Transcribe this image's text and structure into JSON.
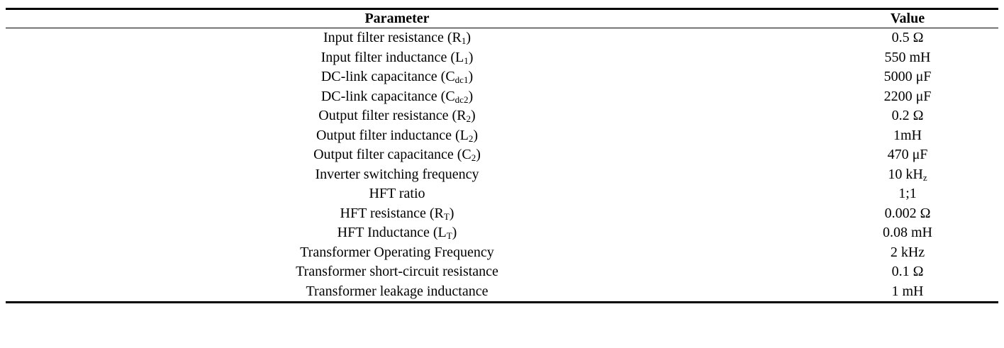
{
  "table": {
    "headers": {
      "parameter": "Parameter",
      "value": "Value"
    },
    "rows": [
      {
        "name": "Input filter resistance (",
        "sym": "R",
        "sub": "1",
        "close": ")",
        "value": "0.5 Ω",
        "value_sub": ""
      },
      {
        "name": "Input filter inductance (",
        "sym": "L",
        "sub": "1",
        "close": ")",
        "value": "550 mH",
        "value_sub": ""
      },
      {
        "name": "DC-link capacitance (",
        "sym": "C",
        "sub": "dc1",
        "close": ")",
        "value": "5000 μF",
        "value_sub": ""
      },
      {
        "name": "DC-link capacitance (",
        "sym": "C",
        "sub": "dc2",
        "close": ")",
        "value": "2200 μF",
        "value_sub": ""
      },
      {
        "name": "Output filter resistance (",
        "sym": "R",
        "sub": "2",
        "close": ")",
        "value": "0.2 Ω",
        "value_sub": ""
      },
      {
        "name": "Output filter inductance (",
        "sym": "L",
        "sub": "2",
        "close": ")",
        "value": "1mH",
        "value_sub": ""
      },
      {
        "name": "Output filter capacitance (",
        "sym": "C",
        "sub": "2",
        "close": ")",
        "value": "470 μF",
        "value_sub": ""
      },
      {
        "name": "Inverter switching frequency",
        "sym": "",
        "sub": "",
        "close": "",
        "value": "10 kH",
        "value_sub": "z"
      },
      {
        "name": "HFT ratio",
        "sym": "",
        "sub": "",
        "close": "",
        "value": "1;1",
        "value_sub": ""
      },
      {
        "name": "HFT resistance (",
        "sym": "R",
        "sub": "T",
        "close": ")",
        "value": "0.002 Ω",
        "value_sub": ""
      },
      {
        "name": "HFT Inductance (",
        "sym": "L",
        "sub": "T",
        "close": ")",
        "value": "0.08 mH",
        "value_sub": ""
      },
      {
        "name": "Transformer Operating Frequency",
        "sym": "",
        "sub": "",
        "close": "",
        "value": "2 kHz",
        "value_sub": ""
      },
      {
        "name": "Transformer short-circuit resistance",
        "sym": "",
        "sub": "",
        "close": "",
        "value": "0.1 Ω",
        "value_sub": ""
      },
      {
        "name": "Transformer leakage inductance",
        "sym": "",
        "sub": "",
        "close": "",
        "value": "1 mH",
        "value_sub": ""
      }
    ]
  }
}
